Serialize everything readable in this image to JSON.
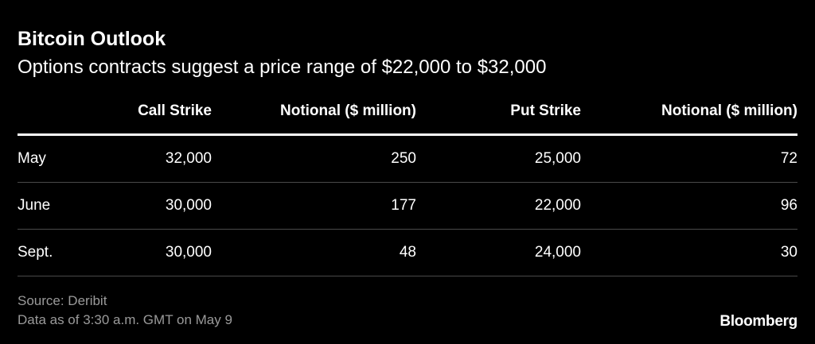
{
  "title": "Bitcoin Outlook",
  "subtitle": "Options contracts suggest a price range of $22,000 to $32,000",
  "chart_data": {
    "type": "table",
    "title": "Bitcoin Outlook",
    "subtitle": "Options contracts suggest a price range of $22,000 to $32,000",
    "columns": [
      "",
      "Call Strike",
      "Notional ($ million)",
      "Put Strike",
      "Notional ($ million)"
    ],
    "rows": [
      [
        "May",
        "32,000",
        "250",
        "25,000",
        "72"
      ],
      [
        "June",
        "30,000",
        "177",
        "22,000",
        "96"
      ],
      [
        "Sept.",
        "30,000",
        "48",
        "24,000",
        "30"
      ]
    ]
  },
  "footer": {
    "source": "Source: Deribit",
    "note": "Data as of 3:30 a.m. GMT on May 9",
    "brand": "Bloomberg"
  },
  "colors": {
    "background": "#000000",
    "text": "#ffffff",
    "muted_text": "#9a9a9a",
    "row_divider": "#4a4a4a"
  }
}
